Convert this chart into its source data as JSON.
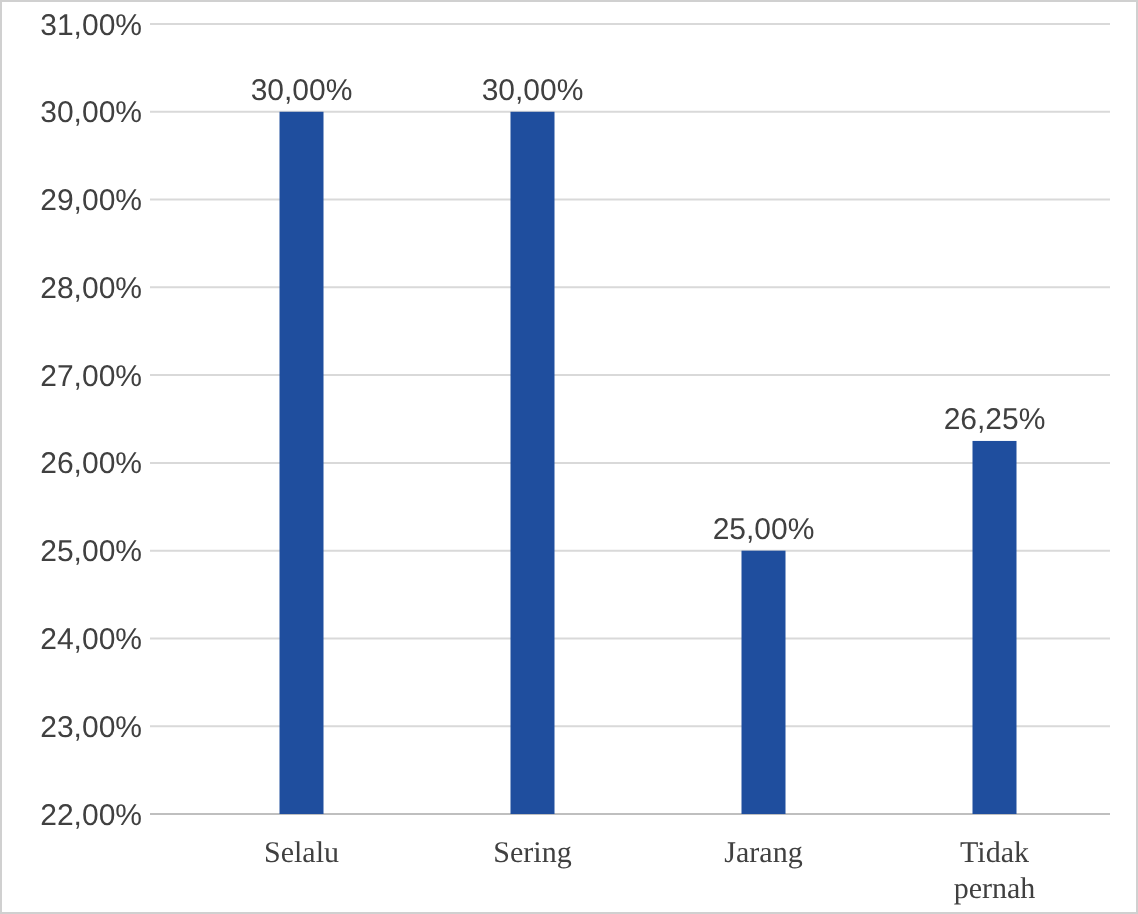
{
  "chart_data": {
    "type": "bar",
    "categories": [
      "Selalu",
      "Sering",
      "Jarang",
      "Tidak pernah"
    ],
    "values": [
      30,
      30,
      25,
      26.25
    ],
    "color": "#1f4e9e",
    "value_labels": [
      "30,00%",
      "30,00%",
      "25,00%",
      "26,25%"
    ],
    "ylim": [
      22,
      31
    ],
    "yticks": [
      {
        "value": 22,
        "label": "22,00%"
      },
      {
        "value": 23,
        "label": "23,00%"
      },
      {
        "value": 24,
        "label": "24,00%"
      },
      {
        "value": 25,
        "label": "25,00%"
      },
      {
        "value": 26,
        "label": "26,00%"
      },
      {
        "value": 27,
        "label": "27,00%"
      },
      {
        "value": 28,
        "label": "28,00%"
      },
      {
        "value": 29,
        "label": "29,00%"
      },
      {
        "value": 30,
        "label": "30,00%"
      },
      {
        "value": 31,
        "label": "31,00%"
      }
    ],
    "grid": "y"
  }
}
